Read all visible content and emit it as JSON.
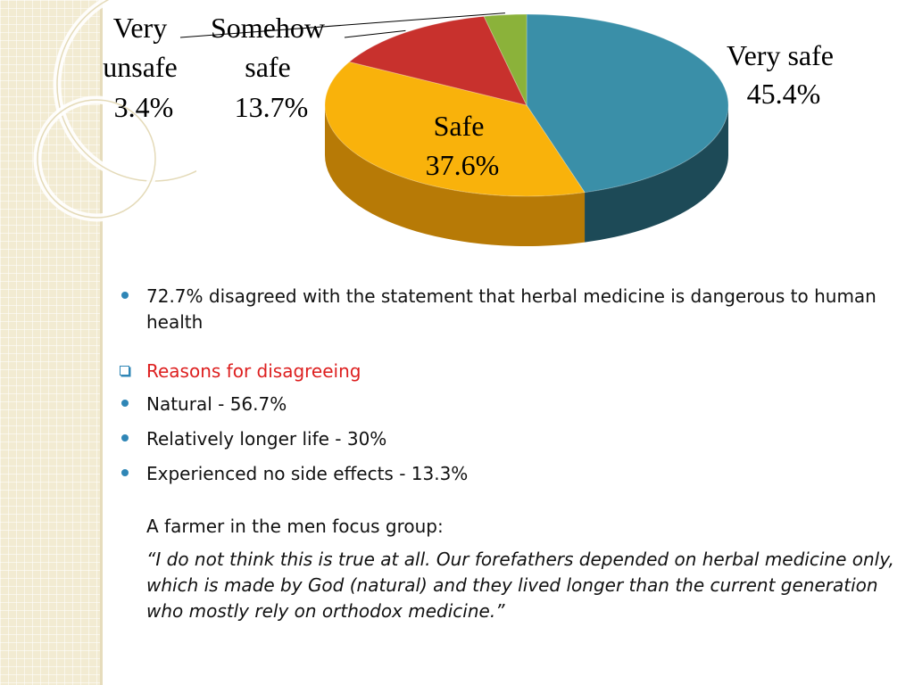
{
  "chart_data": {
    "type": "pie",
    "slices": [
      {
        "label_line1": "Very safe",
        "label_line2": "45.4%",
        "value": 45.4,
        "color": "#3a8fa8",
        "side": "#1d4a57"
      },
      {
        "label_line1": "Safe",
        "label_line2": "37.6%",
        "value": 37.6,
        "color": "#f9b20b",
        "side": "#b77a06"
      },
      {
        "label_line1": "Somehow safe",
        "label_line2": "13.7%",
        "value": 13.7,
        "color": "#c8312d",
        "side": "#7d1a18"
      },
      {
        "label_line1": "Very unsafe",
        "label_line2": "3.4%",
        "value": 3.4,
        "color": "#8bb23a",
        "side": "#4f6b1c"
      }
    ],
    "labels": {
      "very_safe": [
        "Very safe",
        "45.4%"
      ],
      "safe": [
        "Safe",
        "37.6%"
      ],
      "somehow_safe": [
        "Somehow",
        "safe",
        "13.7%"
      ],
      "very_unsafe": [
        "Very",
        "unsafe",
        "3.4%"
      ]
    },
    "style": "3d-pie"
  },
  "content": {
    "stat_bullet": "72.7% disagreed with the statement that herbal medicine is dangerous to human health",
    "reasons_heading": "Reasons for disagreeing",
    "reasons": [
      "Natural - 56.7%",
      "Relatively longer life - 30%",
      "Experienced no side effects - 13.3%"
    ],
    "quote_intro": "A farmer in the men focus group:",
    "quote": "“I do not think this is true at all. Our forefathers depended on herbal medicine only, which is made by God (natural) and they lived longer than the current generation who mostly rely on orthodox medicine.”"
  },
  "colors": {
    "bullet": "#2f86b6",
    "heading_red": "#dd1f1f",
    "band": "#f2ebd2"
  }
}
